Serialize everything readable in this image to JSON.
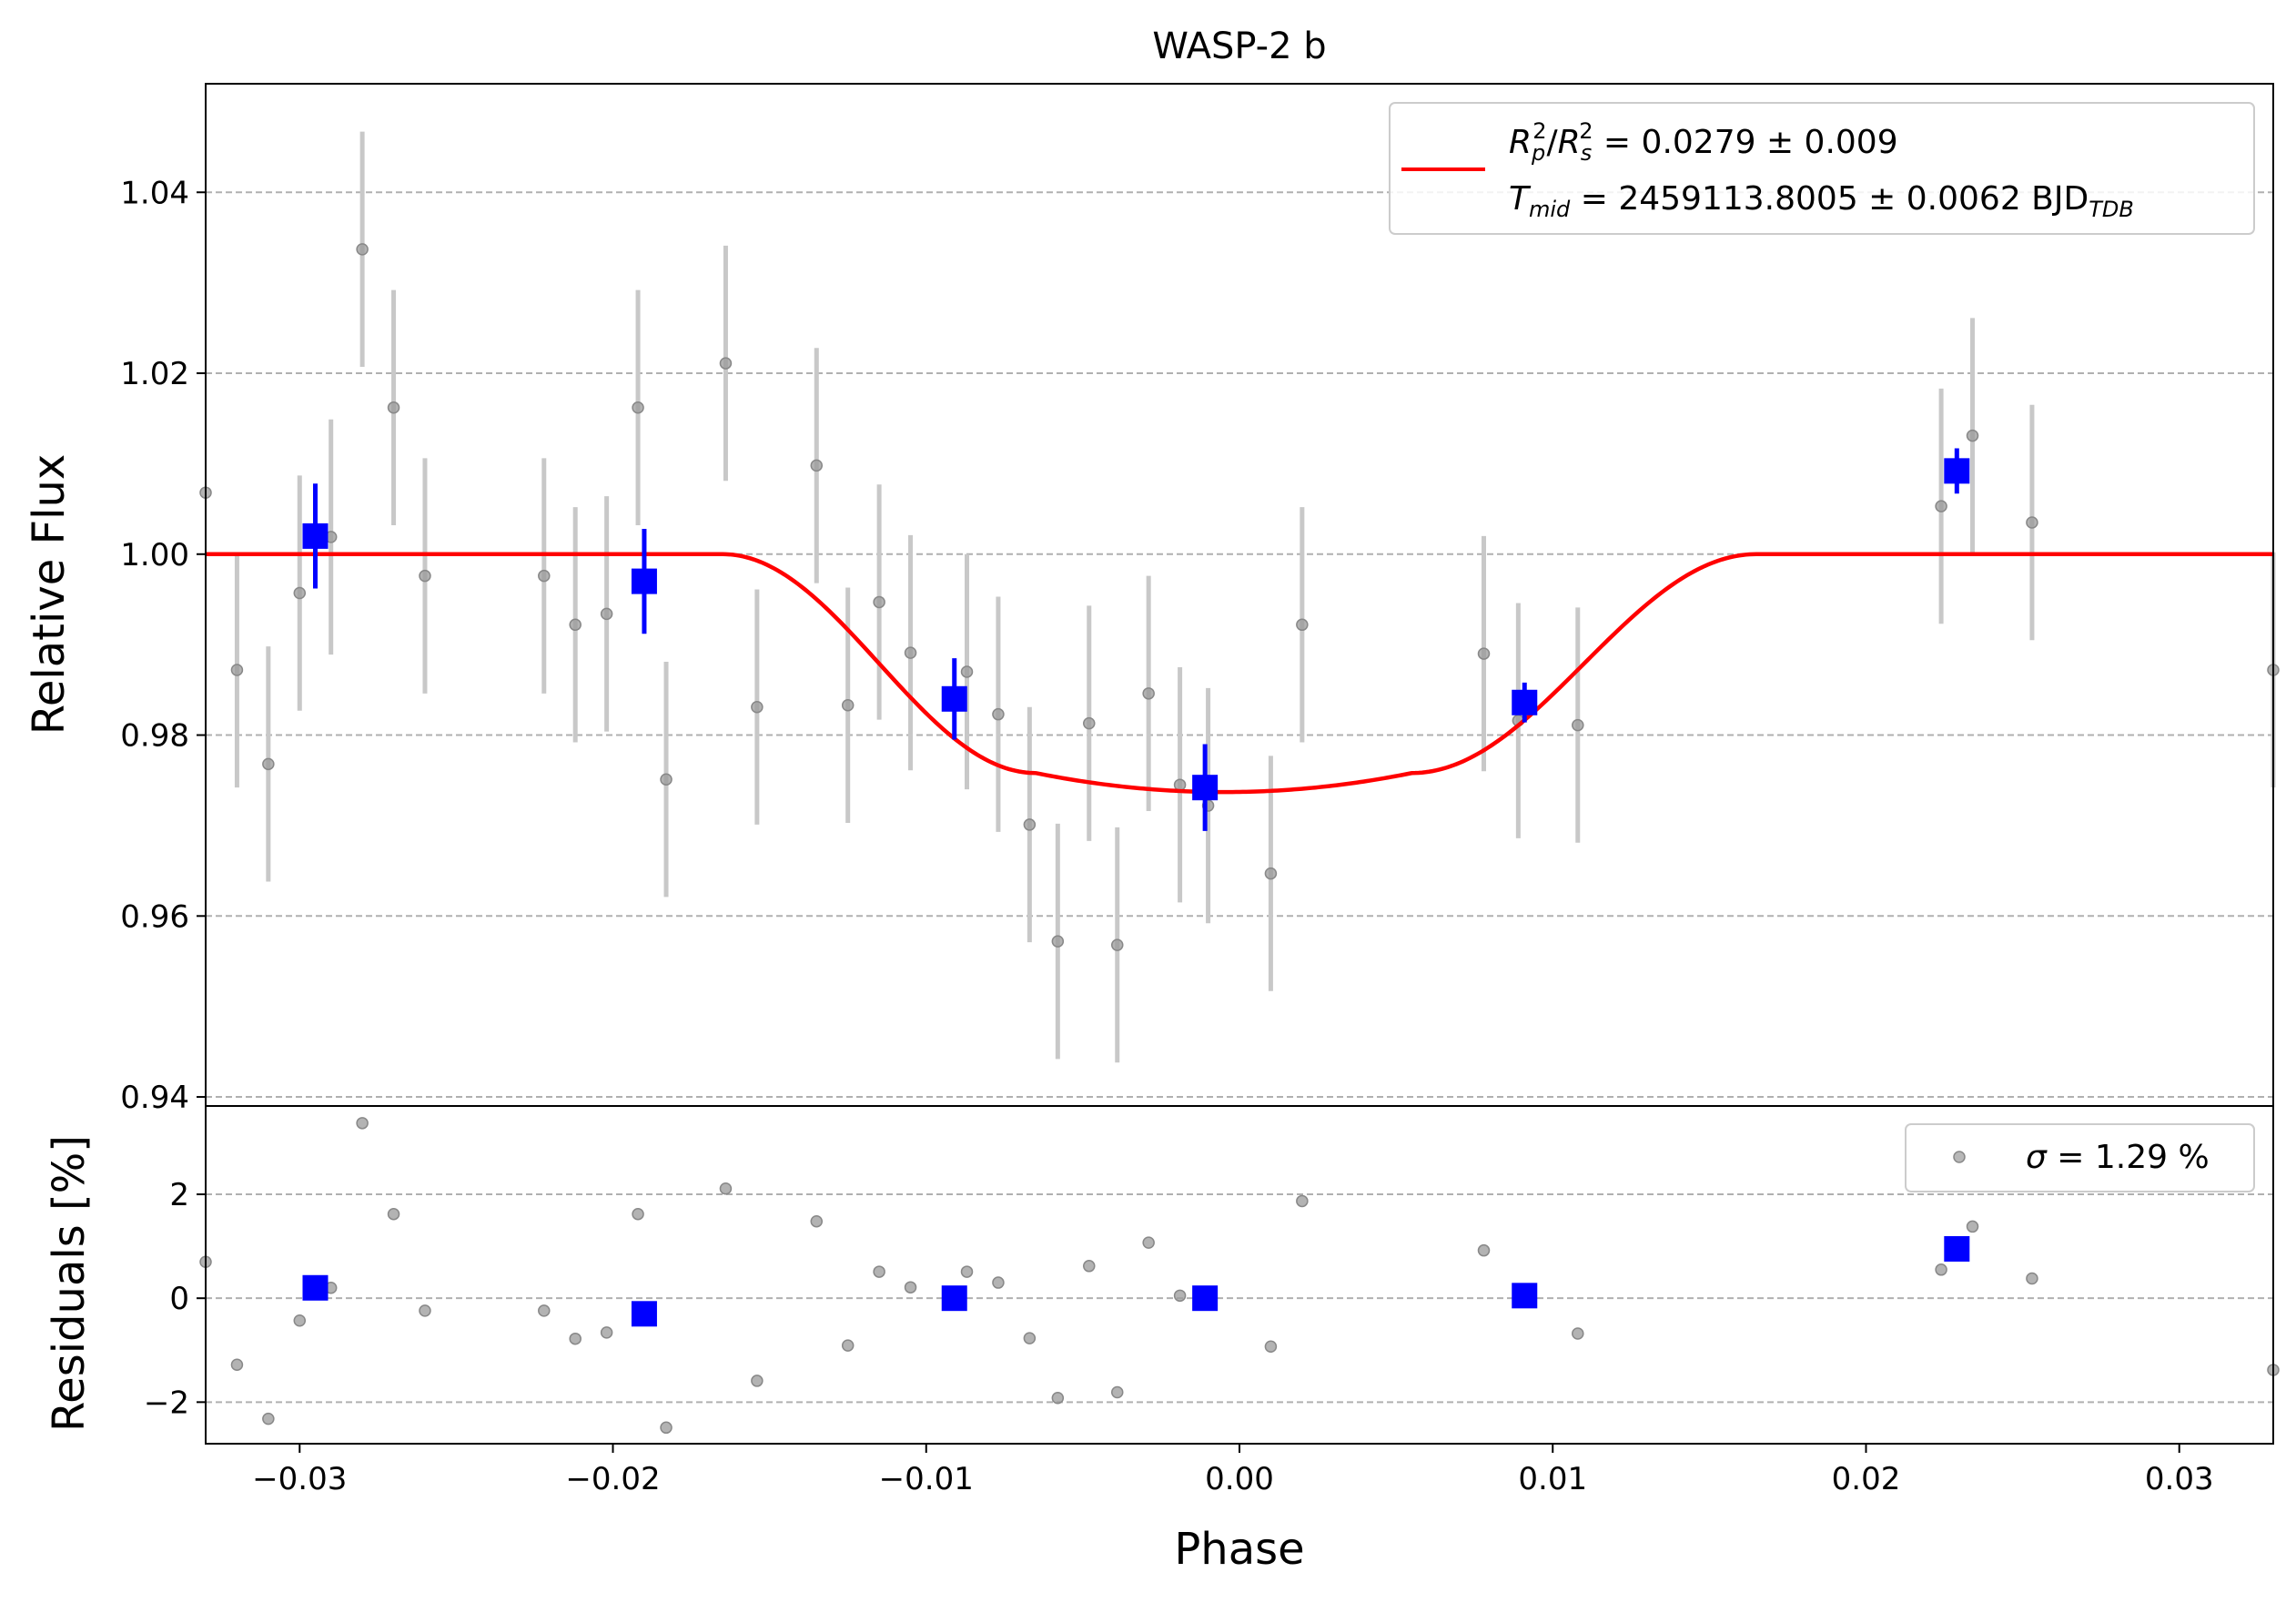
{
  "chart_data": {
    "type": "scatter",
    "title": "WASP-2 b",
    "xlabel": "Phase",
    "xlim": [
      -0.033,
      0.033
    ],
    "x_ticks": [
      -0.03,
      -0.02,
      -0.01,
      0.0,
      0.01,
      0.02,
      0.03
    ],
    "x_tick_labels": [
      "−0.03",
      "−0.02",
      "−0.01",
      "0.00",
      "0.01",
      "0.02",
      "0.03"
    ],
    "colors": {
      "model": "#ff0000",
      "binned": "#0000ff",
      "raw": "#9a9a9a",
      "raw_err": "#c8c8c8",
      "grid": "#b0b0b0"
    },
    "top_panel": {
      "ylabel": "Relative Flux",
      "ylim": [
        0.939,
        1.052
      ],
      "y_ticks": [
        0.94,
        0.96,
        0.98,
        1.0,
        1.02,
        1.04
      ],
      "y_tick_labels": [
        "0.94",
        "0.96",
        "0.98",
        "1.00",
        "1.02",
        "1.04"
      ],
      "grid": "horizontal dashed",
      "legend": {
        "placement": "upper right",
        "line1_sym": "R",
        "line1_sub1": "p",
        "line1_sup1": "2",
        "line1_mid": "/",
        "line1_sym2": "R",
        "line1_sub2": "s",
        "line1_sup2": "2",
        "line1_rest": " = 0.0279 ± 0.009",
        "line2_sym": "T",
        "line2_sub": "mid",
        "line2_rest": " = 2459113.8005 ± 0.0062 BJD",
        "line2_tail_sub": "TDB"
      },
      "model": {
        "depth": 0.0263,
        "t1": -0.0165,
        "t2": -0.0065,
        "t3": 0.0055,
        "t4": 0.0165
      },
      "raw_points": [
        {
          "x": -0.033,
          "y": 1.0068,
          "err": 0.0
        },
        {
          "x": -0.032,
          "y": 0.9872,
          "err": 0.013
        },
        {
          "x": -0.031,
          "y": 0.9768,
          "err": 0.013
        },
        {
          "x": -0.03,
          "y": 0.9957,
          "err": 0.013
        },
        {
          "x": -0.029,
          "y": 1.0019,
          "err": 0.013
        },
        {
          "x": -0.028,
          "y": 1.0337,
          "err": 0.013
        },
        {
          "x": -0.027,
          "y": 1.0162,
          "err": 0.013
        },
        {
          "x": -0.026,
          "y": 0.9976,
          "err": 0.013
        },
        {
          "x": -0.0222,
          "y": 0.9976,
          "err": 0.013
        },
        {
          "x": -0.0212,
          "y": 0.9922,
          "err": 0.013
        },
        {
          "x": -0.0202,
          "y": 0.9934,
          "err": 0.013
        },
        {
          "x": -0.0192,
          "y": 1.0162,
          "err": 0.013
        },
        {
          "x": -0.0183,
          "y": 0.9751,
          "err": 0.013
        },
        {
          "x": -0.0164,
          "y": 1.0211,
          "err": 0.013
        },
        {
          "x": -0.0154,
          "y": 0.9831,
          "err": 0.013
        },
        {
          "x": -0.0135,
          "y": 1.0098,
          "err": 0.013
        },
        {
          "x": -0.0125,
          "y": 0.9833,
          "err": 0.013
        },
        {
          "x": -0.0115,
          "y": 0.9947,
          "err": 0.013
        },
        {
          "x": -0.0105,
          "y": 0.9891,
          "err": 0.013
        },
        {
          "x": -0.0087,
          "y": 0.987,
          "err": 0.013
        },
        {
          "x": -0.0077,
          "y": 0.9823,
          "err": 0.013
        },
        {
          "x": -0.0067,
          "y": 0.9701,
          "err": 0.013
        },
        {
          "x": -0.0058,
          "y": 0.9572,
          "err": 0.013
        },
        {
          "x": -0.0048,
          "y": 0.9813,
          "err": 0.013
        },
        {
          "x": -0.0039,
          "y": 0.9568,
          "err": 0.013
        },
        {
          "x": -0.0029,
          "y": 0.9846,
          "err": 0.013
        },
        {
          "x": -0.0019,
          "y": 0.9745,
          "err": 0.013
        },
        {
          "x": -0.001,
          "y": 0.9722,
          "err": 0.013
        },
        {
          "x": 0.001,
          "y": 0.9647,
          "err": 0.013
        },
        {
          "x": 0.002,
          "y": 0.9922,
          "err": 0.013
        },
        {
          "x": 0.0078,
          "y": 0.989,
          "err": 0.013
        },
        {
          "x": 0.0089,
          "y": 0.9816,
          "err": 0.013
        },
        {
          "x": 0.0108,
          "y": 0.9811,
          "err": 0.013
        },
        {
          "x": 0.0224,
          "y": 1.0053,
          "err": 0.013
        },
        {
          "x": 0.0234,
          "y": 1.0131,
          "err": 0.013
        },
        {
          "x": 0.0253,
          "y": 1.0035,
          "err": 0.013
        },
        {
          "x": 0.033,
          "y": 0.9872,
          "err": 0.013
        }
      ],
      "binned_points": [
        {
          "x": -0.0295,
          "y": 1.002,
          "err": 0.0058
        },
        {
          "x": -0.019,
          "y": 0.997,
          "err": 0.0058
        },
        {
          "x": -0.0091,
          "y": 0.984,
          "err": 0.0045
        },
        {
          "x": -0.0011,
          "y": 0.9742,
          "err": 0.0048
        },
        {
          "x": 0.0091,
          "y": 0.9836,
          "err": 0.0022
        },
        {
          "x": 0.0229,
          "y": 1.0092,
          "err": 0.0025
        }
      ]
    },
    "bottom_panel": {
      "ylabel": "Residuals [%]",
      "ylim": [
        -2.8,
        3.7
      ],
      "y_ticks": [
        -2,
        0,
        2
      ],
      "y_tick_labels": [
        "−2",
        "0",
        "2"
      ],
      "grid": "horizontal dashed",
      "legend": {
        "placement": "upper right",
        "sym": "σ",
        "rest": " = 1.29 %"
      },
      "raw_points": [
        {
          "x": -0.033,
          "y": 0.7
        },
        {
          "x": -0.032,
          "y": -1.28
        },
        {
          "x": -0.031,
          "y": -2.32
        },
        {
          "x": -0.03,
          "y": -0.43
        },
        {
          "x": -0.029,
          "y": 0.2
        },
        {
          "x": -0.028,
          "y": 3.37
        },
        {
          "x": -0.027,
          "y": 1.62
        },
        {
          "x": -0.026,
          "y": -0.24
        },
        {
          "x": -0.0222,
          "y": -0.24
        },
        {
          "x": -0.0212,
          "y": -0.78
        },
        {
          "x": -0.0202,
          "y": -0.66
        },
        {
          "x": -0.0192,
          "y": 1.62
        },
        {
          "x": -0.0183,
          "y": -2.49
        },
        {
          "x": -0.0164,
          "y": 2.11
        },
        {
          "x": -0.0154,
          "y": -1.59
        },
        {
          "x": -0.0135,
          "y": 1.48
        },
        {
          "x": -0.0125,
          "y": -0.91
        },
        {
          "x": -0.0115,
          "y": 0.51
        },
        {
          "x": -0.0105,
          "y": 0.21
        },
        {
          "x": -0.0087,
          "y": 0.51
        },
        {
          "x": -0.0077,
          "y": 0.3
        },
        {
          "x": -0.0067,
          "y": -0.77
        },
        {
          "x": -0.0058,
          "y": -1.92
        },
        {
          "x": -0.0048,
          "y": 0.62
        },
        {
          "x": -0.0039,
          "y": -1.81
        },
        {
          "x": -0.0029,
          "y": 1.07
        },
        {
          "x": -0.0019,
          "y": 0.05
        },
        {
          "x": -0.001,
          "y": -0.1
        },
        {
          "x": 0.001,
          "y": -0.93
        },
        {
          "x": 0.002,
          "y": 1.87
        },
        {
          "x": 0.0078,
          "y": 0.92
        },
        {
          "x": 0.0089,
          "y": -0.05
        },
        {
          "x": 0.0108,
          "y": -0.68
        },
        {
          "x": 0.0224,
          "y": 0.55
        },
        {
          "x": 0.0234,
          "y": 1.38
        },
        {
          "x": 0.0253,
          "y": 0.38
        },
        {
          "x": 0.033,
          "y": -1.38
        }
      ],
      "binned_points": [
        {
          "x": -0.0295,
          "y": 0.2
        },
        {
          "x": -0.019,
          "y": -0.3
        },
        {
          "x": -0.0091,
          "y": 0.0
        },
        {
          "x": -0.0011,
          "y": 0.0
        },
        {
          "x": 0.0091,
          "y": 0.05
        },
        {
          "x": 0.0229,
          "y": 0.95
        }
      ]
    }
  }
}
